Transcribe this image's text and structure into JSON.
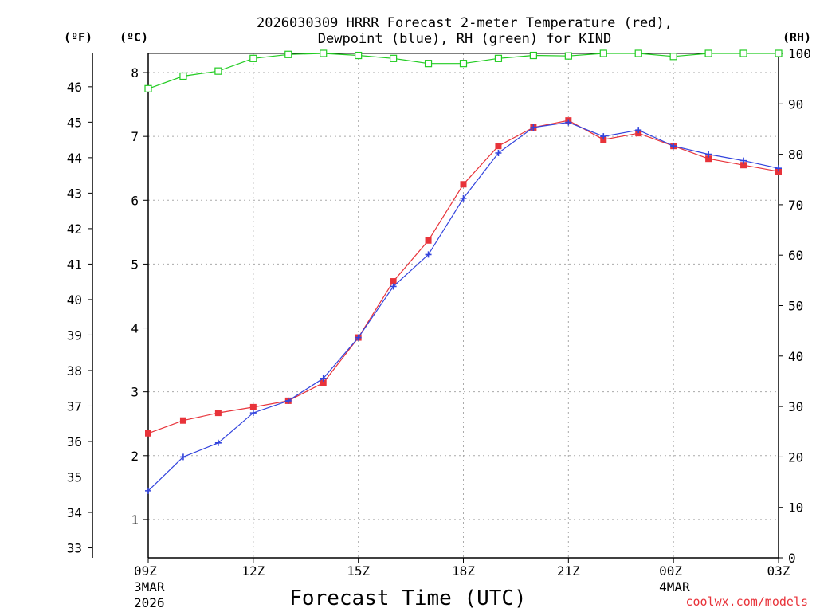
{
  "title_line1": "2026030309 HRRR Forecast 2-meter Temperature (red),",
  "title_line2": "Dewpoint (blue), RH (green) for KIND",
  "unit_f": "(ºF)",
  "unit_c": "(ºC)",
  "unit_rh": "(RH)",
  "xlabel": "Forecast Time (UTC)",
  "credit": "coolwx.com/models",
  "colors": {
    "temperature": "#e8333a",
    "dewpoint": "#3344dd",
    "rh": "#22cc22"
  },
  "chart_data": {
    "type": "line",
    "title": "2026030309 HRRR Forecast 2-meter Temperature (red), Dewpoint (blue), RH (green) for KIND",
    "xlabel": "Forecast Time (UTC)",
    "x": [
      0,
      1,
      2,
      3,
      4,
      5,
      6,
      7,
      8,
      9,
      10,
      11,
      12,
      13,
      14,
      15,
      16,
      17,
      18
    ],
    "xlim": [
      0,
      18
    ],
    "x_ticks": [
      {
        "x": 0,
        "label": "09Z",
        "sub": [
          "3MAR",
          "2026"
        ]
      },
      {
        "x": 3,
        "label": "12Z",
        "sub": []
      },
      {
        "x": 6,
        "label": "15Z",
        "sub": []
      },
      {
        "x": 9,
        "label": "18Z",
        "sub": []
      },
      {
        "x": 12,
        "label": "21Z",
        "sub": []
      },
      {
        "x": 15,
        "label": "00Z",
        "sub": [
          "4MAR"
        ]
      },
      {
        "x": 18,
        "label": "03Z",
        "sub": []
      }
    ],
    "celsius_axis": {
      "label": "(ºC)",
      "ylim": [
        0.4,
        8.3
      ],
      "ticks": [
        "1",
        "2",
        "3",
        "4",
        "5",
        "6",
        "7",
        "8"
      ]
    },
    "fahrenheit_axis": {
      "label": "(ºF)",
      "ticks": [
        "33",
        "34",
        "35",
        "36",
        "37",
        "38",
        "39",
        "40",
        "41",
        "42",
        "43",
        "44",
        "45",
        "46"
      ]
    },
    "rh_axis": {
      "label": "(RH)",
      "ylim": [
        0,
        100
      ],
      "ticks": [
        "0",
        "10",
        "20",
        "30",
        "40",
        "50",
        "60",
        "70",
        "80",
        "90",
        "100"
      ]
    },
    "series": [
      {
        "name": "Temperature",
        "axis": "celsius",
        "color": "#e8333a",
        "marker": "filled-square",
        "values": [
          2.35,
          2.55,
          2.67,
          2.76,
          2.86,
          3.14,
          3.85,
          4.73,
          5.37,
          6.25,
          6.85,
          7.14,
          7.25,
          6.95,
          7.05,
          6.85,
          6.65,
          6.55,
          6.45
        ]
      },
      {
        "name": "Dewpoint",
        "axis": "celsius",
        "color": "#3344dd",
        "marker": "plus",
        "values": [
          1.45,
          1.98,
          2.2,
          2.67,
          2.86,
          3.21,
          3.85,
          4.65,
          5.15,
          6.03,
          6.74,
          7.14,
          7.22,
          7.0,
          7.1,
          6.85,
          6.72,
          6.62,
          6.5
        ]
      },
      {
        "name": "RH",
        "axis": "rh",
        "color": "#22cc22",
        "marker": "open-square",
        "values": [
          93,
          95.5,
          96.5,
          99,
          99.8,
          100,
          99.6,
          99,
          98,
          98,
          99,
          99.6,
          99.5,
          100,
          100,
          99.4,
          100,
          100,
          100
        ]
      }
    ]
  }
}
